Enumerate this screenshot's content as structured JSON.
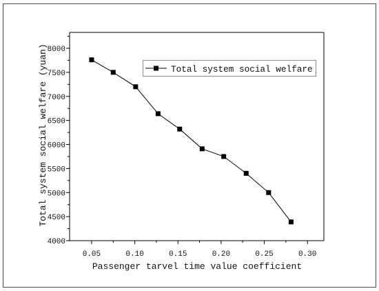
{
  "chart_data": {
    "type": "line",
    "xlabel": "Passenger tarvel time value coefficient",
    "ylabel": "Total system social welfare (yuan)",
    "xlim": [
      0.0245,
      0.319
    ],
    "ylim": [
      4000,
      8330
    ],
    "xticks": [
      0.05,
      0.1,
      0.15,
      0.2,
      0.25,
      0.3
    ],
    "xtick_labels": [
      "0.05",
      "0.10",
      "0.15",
      "0.20",
      "0.25",
      "0.30"
    ],
    "yticks": [
      4000,
      4500,
      5000,
      5500,
      6000,
      6500,
      7000,
      7500,
      8000
    ],
    "ytick_labels": [
      "4000",
      "4500",
      "5000",
      "5500",
      "6000",
      "6500",
      "7000",
      "7500",
      "8000"
    ],
    "grid": false,
    "legend_position": "top-right",
    "marker": "square",
    "series": [
      {
        "name": "Total system social welfare",
        "color": "#000000",
        "x": [
          0.05,
          0.075,
          0.101,
          0.127,
          0.152,
          0.178,
          0.203,
          0.229,
          0.255,
          0.281
        ],
        "y": [
          7760,
          7500,
          7200,
          6640,
          6320,
          5910,
          5750,
          5400,
          5000,
          4390
        ]
      }
    ]
  }
}
